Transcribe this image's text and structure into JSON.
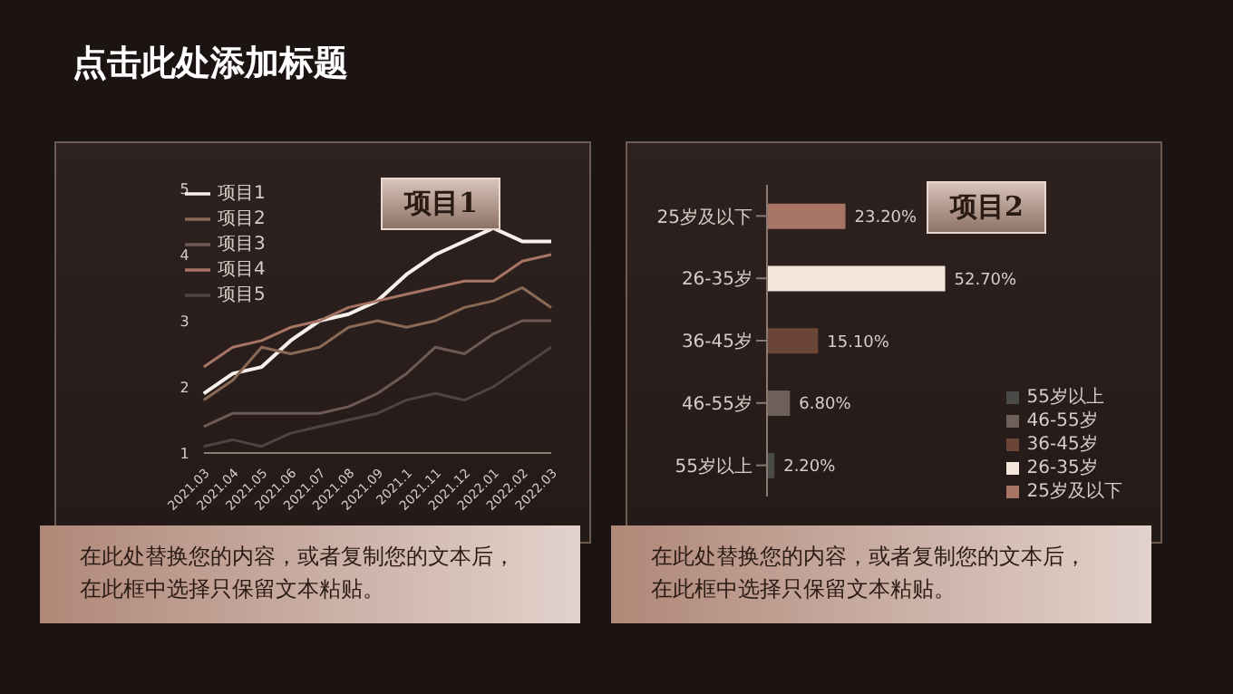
{
  "chart_data": [
    {
      "type": "line",
      "title": "点击此处添加标题",
      "subtitle": "项目1",
      "categories": [
        "2021.03",
        "2021.04",
        "2021.05",
        "2021.06",
        "2021.07",
        "2021.08",
        "2021.09",
        "2021.1",
        "2021.11",
        "2021.12",
        "2022.01",
        "2022.02",
        "2022.03"
      ],
      "series": [
        {
          "name": "项目1",
          "color": "#f8f0ea",
          "values": [
            1.9,
            2.2,
            2.3,
            2.7,
            3.0,
            3.1,
            3.3,
            3.7,
            4.0,
            4.2,
            4.4,
            4.2,
            4.2
          ]
        },
        {
          "name": "项目2",
          "color": "#8a6a55",
          "values": [
            1.8,
            2.1,
            2.6,
            2.5,
            2.6,
            2.9,
            3.0,
            2.9,
            3.0,
            3.2,
            3.3,
            3.5,
            3.2
          ]
        },
        {
          "name": "项目3",
          "color": "#6e5a55",
          "values": [
            1.4,
            1.6,
            1.6,
            1.6,
            1.6,
            1.7,
            1.9,
            2.2,
            2.6,
            2.5,
            2.8,
            3.0,
            3.0
          ]
        },
        {
          "name": "项目4",
          "color": "#a87565",
          "values": [
            2.3,
            2.6,
            2.7,
            2.9,
            3.0,
            3.2,
            3.3,
            3.4,
            3.5,
            3.6,
            3.6,
            3.9,
            4.0
          ]
        },
        {
          "name": "项目5",
          "color": "#4d4542",
          "values": [
            1.1,
            1.2,
            1.1,
            1.3,
            1.4,
            1.5,
            1.6,
            1.8,
            1.9,
            1.8,
            2.0,
            2.3,
            2.6
          ]
        }
      ],
      "ylim": [
        1,
        5
      ],
      "yticks": [
        1,
        2,
        3,
        4,
        5
      ],
      "legend": "top left",
      "marker": "none",
      "annotations": [
        "在此处替换您的内容，或者复制您的文本后，在此框中选择只保留文本粘贴。"
      ]
    },
    {
      "type": "bar",
      "orientation": "horizontal",
      "stacked": true,
      "title": "项目2",
      "categories": [
        "25岁及以下",
        "26-35岁",
        "36-45岁",
        "46-55岁",
        "55岁以上"
      ],
      "series": [
        {
          "name": "25岁及以下",
          "color": "#a87565",
          "values": [
            23.2,
            null,
            null,
            null,
            null
          ],
          "value_labels": [
            "23.20%",
            null,
            null,
            null,
            null
          ]
        },
        {
          "name": "26-35岁",
          "color": "#f5e6dc",
          "values": [
            null,
            52.7,
            null,
            null,
            null
          ],
          "value_labels": [
            null,
            "52.70%",
            null,
            null,
            null
          ]
        },
        {
          "name": "36-45岁",
          "color": "#6b4535",
          "values": [
            null,
            null,
            15.1,
            null,
            null
          ],
          "value_labels": [
            null,
            null,
            "15.10%",
            null,
            null
          ]
        },
        {
          "name": "46-55岁",
          "color": "#6e6058",
          "values": [
            null,
            null,
            null,
            6.8,
            null
          ],
          "value_labels": [
            null,
            null,
            null,
            "6.80%",
            null
          ]
        },
        {
          "name": "55岁以上",
          "color": "#4a4a48",
          "values": [
            null,
            null,
            null,
            null,
            2.2
          ],
          "value_labels": [
            null,
            null,
            null,
            null,
            "2.20%"
          ]
        }
      ],
      "legend": "bottom right",
      "annotations": [
        "在此处替换您的内容，或者复制您的文本后，在此框中选择只保留文本粘贴。"
      ]
    }
  ]
}
